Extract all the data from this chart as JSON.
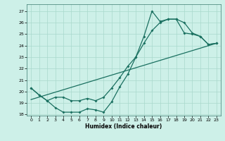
{
  "xlabel": "Humidex (Indice chaleur)",
  "bg_color": "#cdf0e8",
  "grid_color": "#a8d8cc",
  "line_color": "#1a7060",
  "marker": "D",
  "markersize": 2.0,
  "linewidth": 0.9,
  "xlim": [
    -0.5,
    23.5
  ],
  "ylim": [
    17.9,
    27.6
  ],
  "xticks": [
    0,
    1,
    2,
    3,
    4,
    5,
    6,
    7,
    8,
    9,
    10,
    11,
    12,
    13,
    14,
    15,
    16,
    17,
    18,
    19,
    20,
    21,
    22,
    23
  ],
  "yticks": [
    18,
    19,
    20,
    21,
    22,
    23,
    24,
    25,
    26,
    27
  ],
  "series1_x": [
    0,
    1,
    2,
    3,
    4,
    5,
    6,
    7,
    8,
    9,
    10,
    11,
    12,
    13,
    14,
    15,
    16,
    17,
    18,
    19,
    20,
    21,
    22,
    23
  ],
  "series1_y": [
    20.3,
    19.7,
    19.2,
    18.6,
    18.2,
    18.2,
    18.2,
    18.5,
    18.4,
    18.2,
    19.1,
    20.4,
    21.5,
    23.0,
    24.8,
    27.0,
    26.1,
    26.3,
    26.3,
    25.1,
    25.0,
    24.8,
    24.1,
    24.2
  ],
  "series2_x": [
    0,
    1,
    2,
    3,
    4,
    5,
    6,
    7,
    8,
    9,
    10,
    11,
    12,
    13,
    14,
    15,
    16,
    17,
    18,
    19,
    20,
    21,
    22,
    23
  ],
  "series2_y": [
    20.3,
    19.7,
    19.2,
    19.5,
    19.5,
    19.2,
    19.2,
    19.4,
    19.2,
    19.5,
    20.3,
    21.2,
    22.2,
    23.0,
    24.2,
    25.3,
    26.0,
    26.3,
    26.3,
    26.0,
    25.1,
    24.8,
    24.1,
    24.2
  ],
  "series3_x": [
    0,
    23
  ],
  "series3_y": [
    19.3,
    24.2
  ],
  "xlabel_fontsize": 5.5,
  "tick_fontsize": 4.5
}
